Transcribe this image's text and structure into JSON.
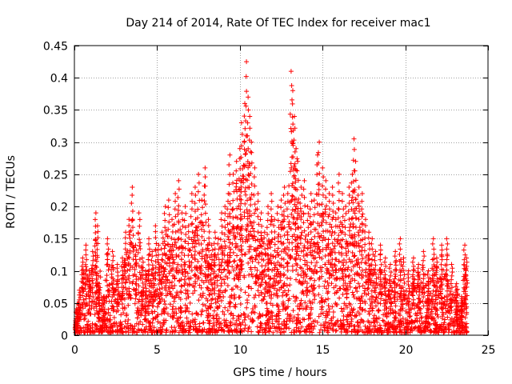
{
  "chart_data": {
    "type": "scatter",
    "title": "Day 214 of 2014, Rate Of TEC Index for receiver mac1",
    "xlabel": "GPS time / hours",
    "ylabel": "ROTI / TECUs",
    "xlim": [
      0,
      25
    ],
    "ylim": [
      0,
      0.45
    ],
    "xticks": [
      0,
      5,
      10,
      15,
      20,
      25
    ],
    "xtick_labels": [
      "0",
      "5",
      "10",
      "15",
      "20",
      "25"
    ],
    "yticks": [
      0,
      0.05,
      0.1,
      0.15,
      0.2,
      0.25,
      0.3,
      0.35,
      0.4,
      0.45
    ],
    "ytick_labels": [
      "0",
      "0.05",
      "0.1",
      "0.15",
      "0.2",
      "0.25",
      "0.3",
      "0.35",
      "0.4",
      "0.45"
    ],
    "grid": true,
    "marker": "plus",
    "color": "#ff0000",
    "series": [
      {
        "name": "ROTI",
        "points": [
          [
            0.1,
            0.02
          ],
          [
            0.2,
            0.04
          ],
          [
            0.3,
            0.07
          ],
          [
            0.5,
            0.12
          ],
          [
            0.7,
            0.14
          ],
          [
            0.9,
            0.1
          ],
          [
            1.1,
            0.13
          ],
          [
            1.3,
            0.19
          ],
          [
            1.4,
            0.17
          ],
          [
            1.5,
            0.08
          ],
          [
            1.8,
            0.06
          ],
          [
            2.0,
            0.15
          ],
          [
            2.3,
            0.13
          ],
          [
            2.6,
            0.11
          ],
          [
            2.9,
            0.12
          ],
          [
            3.1,
            0.16
          ],
          [
            3.3,
            0.18
          ],
          [
            3.5,
            0.23
          ],
          [
            3.7,
            0.14
          ],
          [
            3.9,
            0.19
          ],
          [
            4.1,
            0.12
          ],
          [
            4.3,
            0.1
          ],
          [
            4.5,
            0.15
          ],
          [
            4.7,
            0.13
          ],
          [
            4.9,
            0.17
          ],
          [
            5.1,
            0.14
          ],
          [
            5.3,
            0.16
          ],
          [
            5.5,
            0.2
          ],
          [
            5.7,
            0.21
          ],
          [
            5.9,
            0.18
          ],
          [
            6.1,
            0.22
          ],
          [
            6.3,
            0.24
          ],
          [
            6.5,
            0.19
          ],
          [
            6.7,
            0.2
          ],
          [
            6.9,
            0.17
          ],
          [
            7.1,
            0.22
          ],
          [
            7.3,
            0.23
          ],
          [
            7.5,
            0.25
          ],
          [
            7.7,
            0.21
          ],
          [
            7.9,
            0.26
          ],
          [
            8.1,
            0.18
          ],
          [
            8.3,
            0.14
          ],
          [
            8.5,
            0.16
          ],
          [
            8.7,
            0.15
          ],
          [
            8.9,
            0.19
          ],
          [
            9.1,
            0.2
          ],
          [
            9.3,
            0.22
          ],
          [
            9.4,
            0.28
          ],
          [
            9.6,
            0.25
          ],
          [
            9.8,
            0.27
          ],
          [
            10.0,
            0.29
          ],
          [
            10.1,
            0.33
          ],
          [
            10.3,
            0.36
          ],
          [
            10.4,
            0.425
          ],
          [
            10.5,
            0.37
          ],
          [
            10.6,
            0.34
          ],
          [
            10.7,
            0.3
          ],
          [
            10.9,
            0.26
          ],
          [
            11.1,
            0.22
          ],
          [
            11.3,
            0.19
          ],
          [
            11.5,
            0.16
          ],
          [
            11.7,
            0.2
          ],
          [
            11.9,
            0.22
          ],
          [
            12.1,
            0.18
          ],
          [
            12.3,
            0.2
          ],
          [
            12.5,
            0.21
          ],
          [
            12.7,
            0.23
          ],
          [
            12.9,
            0.22
          ],
          [
            13.1,
            0.41
          ],
          [
            13.2,
            0.38
          ],
          [
            13.3,
            0.34
          ],
          [
            13.4,
            0.29
          ],
          [
            13.5,
            0.27
          ],
          [
            13.7,
            0.23
          ],
          [
            13.9,
            0.24
          ],
          [
            14.1,
            0.2
          ],
          [
            14.3,
            0.22
          ],
          [
            14.5,
            0.21
          ],
          [
            14.7,
            0.28
          ],
          [
            14.8,
            0.3
          ],
          [
            15.0,
            0.26
          ],
          [
            15.2,
            0.24
          ],
          [
            15.4,
            0.22
          ],
          [
            15.6,
            0.23
          ],
          [
            15.8,
            0.19
          ],
          [
            16.0,
            0.25
          ],
          [
            16.2,
            0.22
          ],
          [
            16.4,
            0.2
          ],
          [
            16.6,
            0.23
          ],
          [
            16.8,
            0.25
          ],
          [
            16.9,
            0.305
          ],
          [
            17.0,
            0.27
          ],
          [
            17.2,
            0.23
          ],
          [
            17.4,
            0.22
          ],
          [
            17.6,
            0.18
          ],
          [
            17.8,
            0.16
          ],
          [
            18.0,
            0.15
          ],
          [
            18.2,
            0.13
          ],
          [
            18.5,
            0.14
          ],
          [
            18.8,
            0.12
          ],
          [
            19.1,
            0.11
          ],
          [
            19.4,
            0.13
          ],
          [
            19.7,
            0.15
          ],
          [
            19.9,
            0.12
          ],
          [
            20.2,
            0.1
          ],
          [
            20.5,
            0.12
          ],
          [
            20.8,
            0.11
          ],
          [
            21.1,
            0.13
          ],
          [
            21.4,
            0.1
          ],
          [
            21.7,
            0.15
          ],
          [
            21.9,
            0.12
          ],
          [
            22.2,
            0.14
          ],
          [
            22.5,
            0.15
          ],
          [
            22.8,
            0.11
          ],
          [
            23.1,
            0.08
          ],
          [
            23.4,
            0.06
          ],
          [
            23.6,
            0.14
          ],
          [
            23.7,
            0.12
          ]
        ]
      }
    ],
    "noise": {
      "x_min": 0.05,
      "x_max": 23.75,
      "count": 2600,
      "seed": 214
    }
  }
}
